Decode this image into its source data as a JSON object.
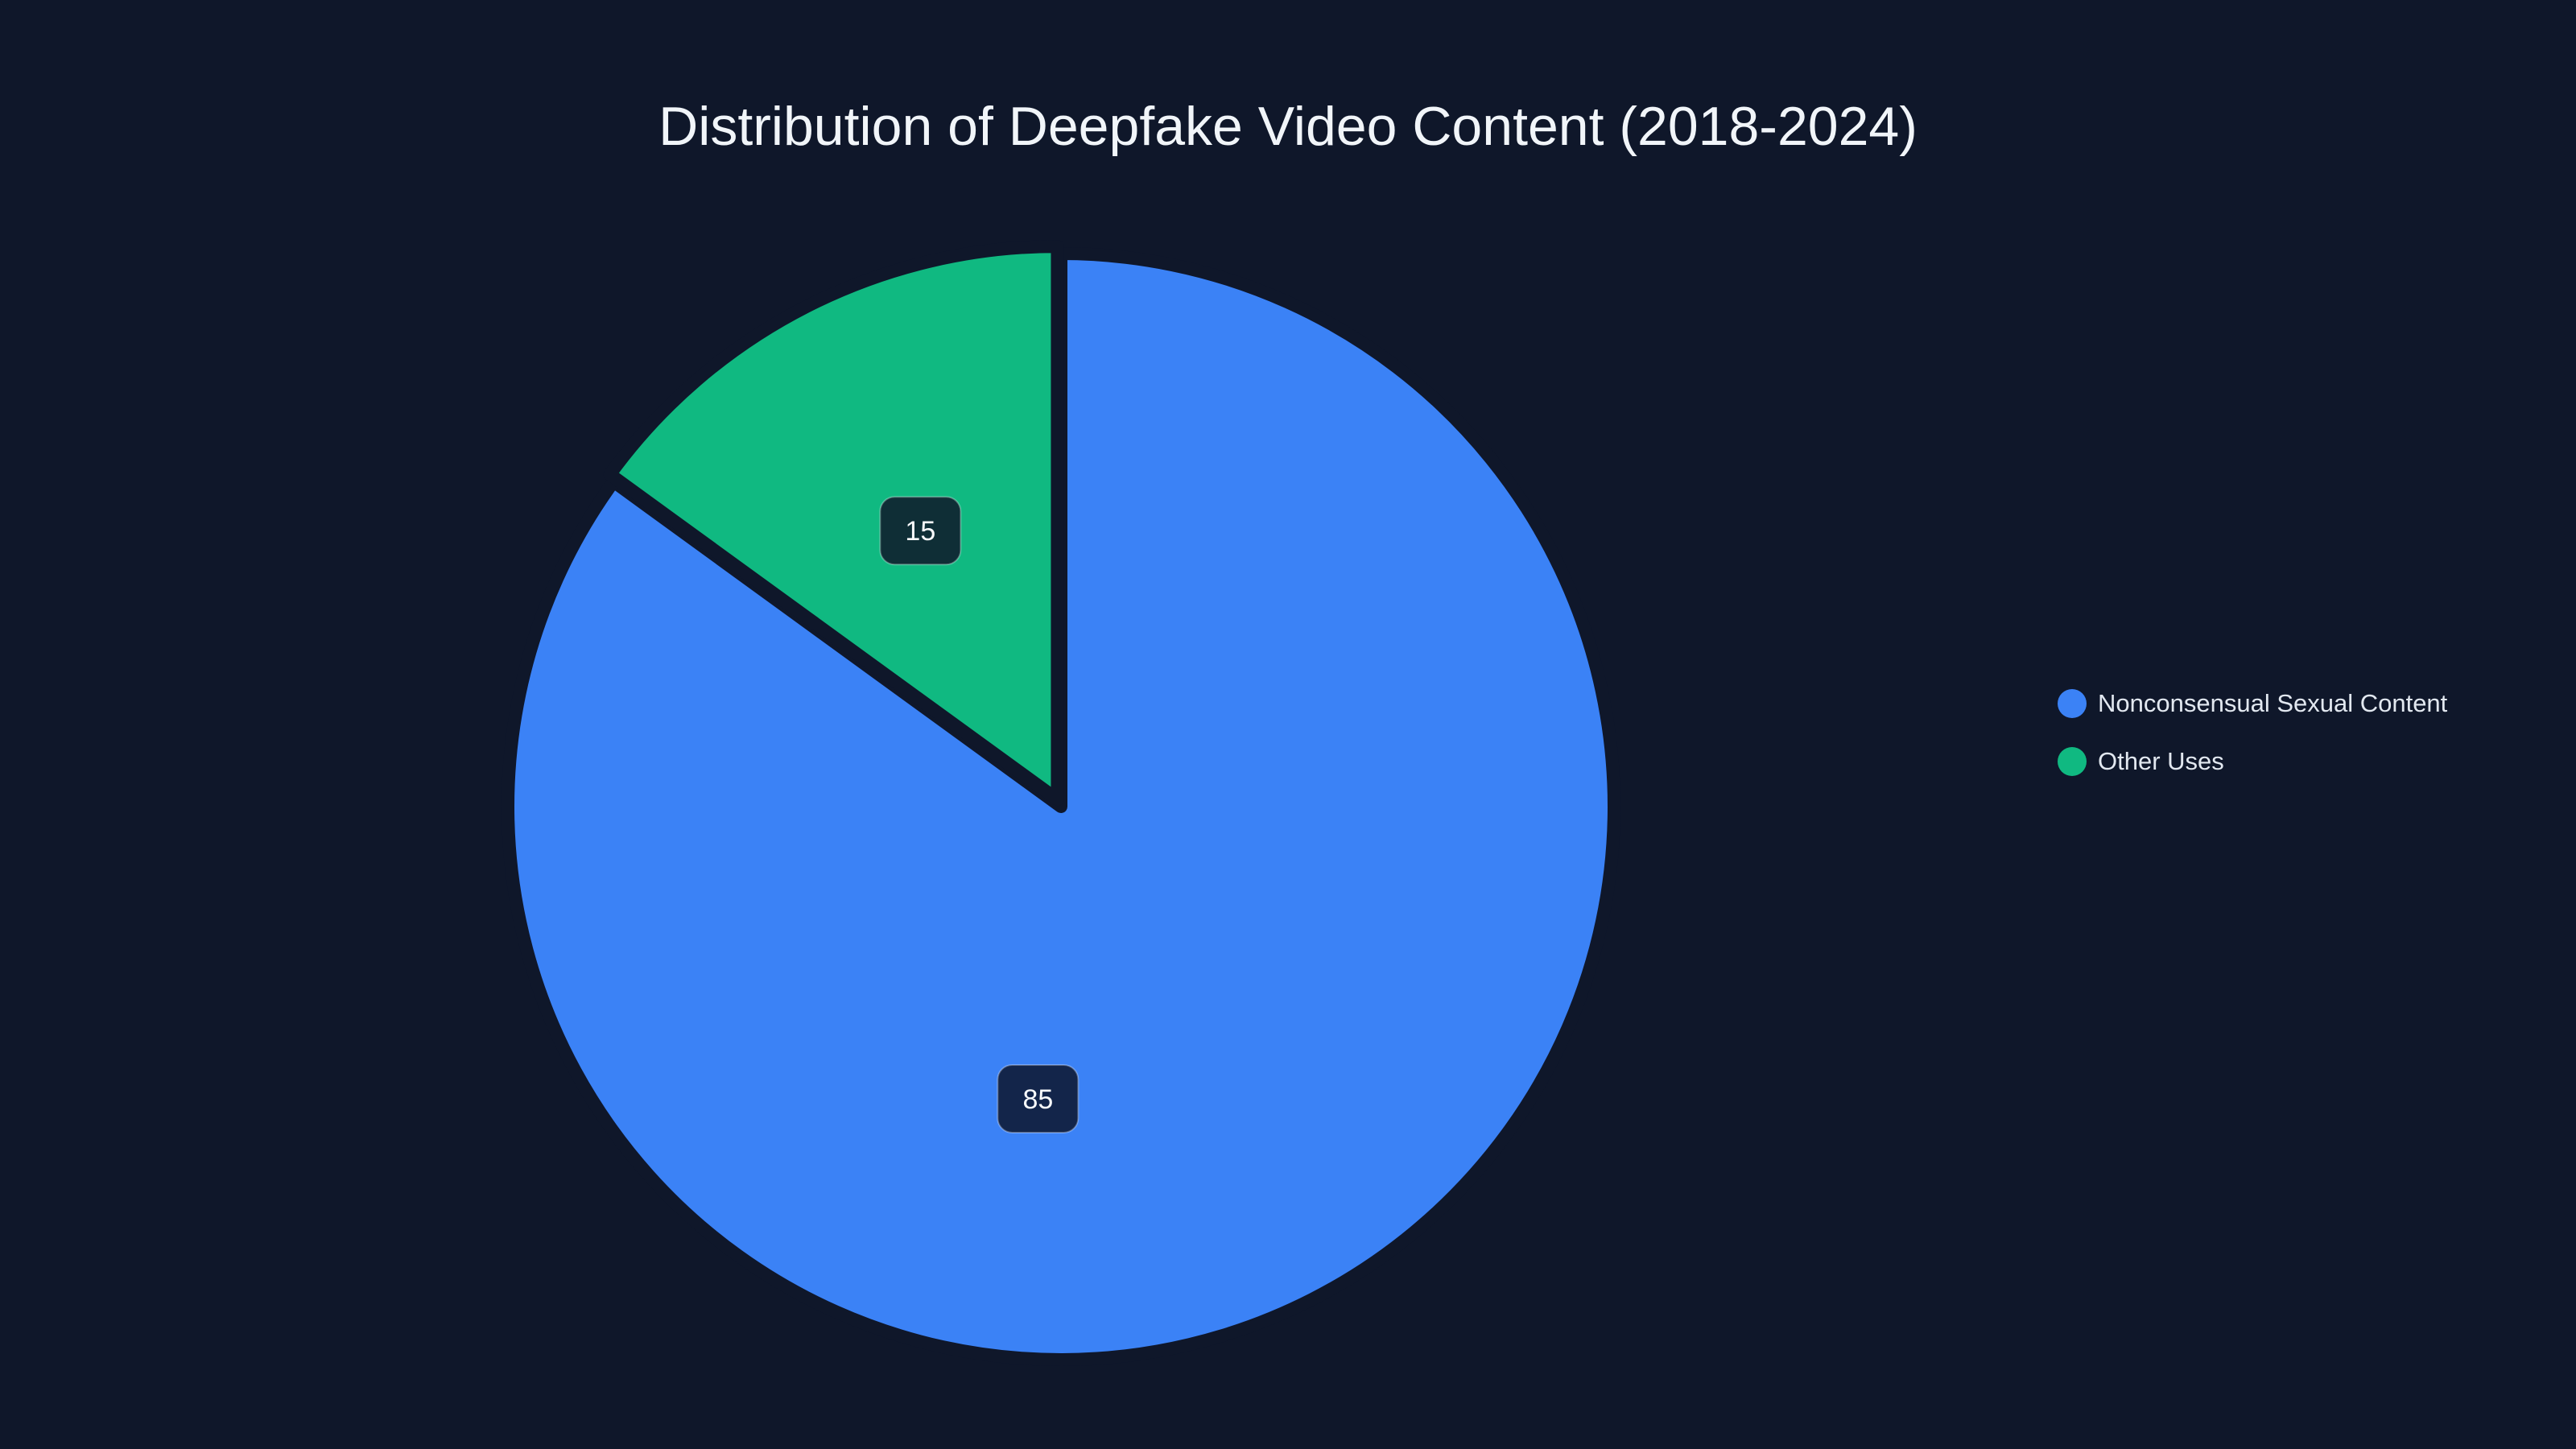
{
  "chart_data": {
    "type": "pie",
    "title": "Distribution of Deepfake Video Content (2018-2024)",
    "slices": [
      {
        "label": "Nonconsensual Sexual Content",
        "value": 85,
        "data_label": "85",
        "color": "#3b82f6"
      },
      {
        "label": "Other Uses",
        "value": 15,
        "data_label": "15",
        "color": "#10b981"
      }
    ],
    "legend_placement": "right",
    "background": "#0f172a",
    "label_box_colors": [
      "#13254a",
      "#0f2e36"
    ]
  }
}
